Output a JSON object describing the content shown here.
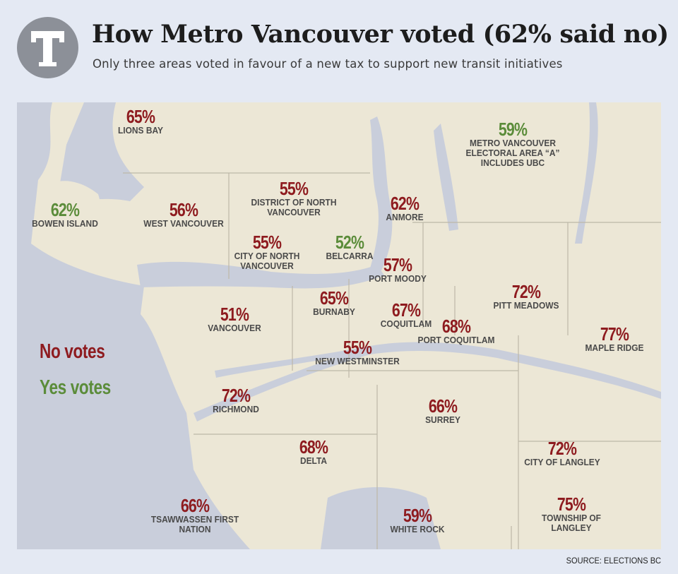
{
  "header": {
    "logo_letter": "T",
    "title": "How Metro Vancouver voted (62% said no)",
    "subtitle": "Only three areas voted in favour of a new tax to support new transit initiatives"
  },
  "legend": {
    "no_label": "No votes",
    "yes_label": "Yes votes",
    "no_color": "#8e1b1f",
    "yes_color": "#5b8c3a"
  },
  "regions": [
    {
      "pct": "65%",
      "name": "LIONS BAY",
      "vote": "no"
    },
    {
      "pct": "59%",
      "name": "METRO VANCOUVER\nELECTORAL AREA “A”\nINCLUDES UBC",
      "vote": "yes"
    },
    {
      "pct": "62%",
      "name": "BOWEN ISLAND",
      "vote": "yes"
    },
    {
      "pct": "56%",
      "name": "WEST VANCOUVER",
      "vote": "no"
    },
    {
      "pct": "55%",
      "name": "DISTRICT OF NORTH\nVANCOUVER",
      "vote": "no"
    },
    {
      "pct": "62%",
      "name": "ANMORE",
      "vote": "no"
    },
    {
      "pct": "55%",
      "name": "CITY OF NORTH\nVANCOUVER",
      "vote": "no"
    },
    {
      "pct": "52%",
      "name": "BELCARRA",
      "vote": "yes"
    },
    {
      "pct": "57%",
      "name": "PORT MOODY",
      "vote": "no"
    },
    {
      "pct": "72%",
      "name": "PITT MEADOWS",
      "vote": "no"
    },
    {
      "pct": "65%",
      "name": "BURNABY",
      "vote": "no"
    },
    {
      "pct": "67%",
      "name": "COQUITLAM",
      "vote": "no"
    },
    {
      "pct": "51%",
      "name": "VANCOUVER",
      "vote": "no"
    },
    {
      "pct": "68%",
      "name": "PORT COQUITLAM",
      "vote": "no"
    },
    {
      "pct": "77%",
      "name": "MAPLE RIDGE",
      "vote": "no"
    },
    {
      "pct": "55%",
      "name": "NEW WESTMINSTER",
      "vote": "no"
    },
    {
      "pct": "72%",
      "name": "RICHMOND",
      "vote": "no"
    },
    {
      "pct": "66%",
      "name": "SURREY",
      "vote": "no"
    },
    {
      "pct": "68%",
      "name": "DELTA",
      "vote": "no"
    },
    {
      "pct": "72%",
      "name": "CITY OF LANGLEY",
      "vote": "no"
    },
    {
      "pct": "66%",
      "name": "TSAWWASSEN FIRST\nNATION",
      "vote": "no"
    },
    {
      "pct": "59%",
      "name": "WHITE ROCK",
      "vote": "no"
    },
    {
      "pct": "75%",
      "name": "TOWNSHIP OF\nLANGLEY",
      "vote": "no"
    }
  ],
  "source": "SOURCE: ELECTIONS BC"
}
